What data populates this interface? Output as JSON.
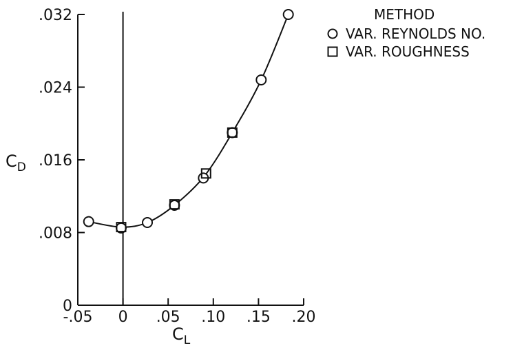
{
  "chart_data": {
    "type": "scatter",
    "xlabel": "C_L",
    "ylabel": "C_D",
    "xlim": [
      -0.05,
      0.2
    ],
    "ylim": [
      0,
      0.032
    ],
    "x_ticks": [
      -0.05,
      0,
      0.05,
      0.1,
      0.15,
      0.2
    ],
    "x_tick_labels": [
      "-.05",
      "0",
      ".05",
      ".10",
      ".15",
      ".20"
    ],
    "y_ticks": [
      0,
      0.008,
      0.016,
      0.024,
      0.032
    ],
    "y_tick_labels": [
      "0",
      ".008",
      ".016",
      ".024",
      ".032"
    ],
    "grid": false,
    "legend": {
      "title": "METHOD",
      "placement": "top-right",
      "entries": [
        "VAR. REYNOLDS NO.",
        "VAR. ROUGHNESS"
      ]
    },
    "series": [
      {
        "name": "VAR. REYNOLDS NO.",
        "marker": "circle",
        "points": [
          [
            -0.038,
            0.0092
          ],
          [
            -0.002,
            0.0085
          ],
          [
            0.027,
            0.0091
          ],
          [
            0.057,
            0.011
          ],
          [
            0.089,
            0.014
          ],
          [
            0.121,
            0.019
          ],
          [
            0.153,
            0.0248
          ],
          [
            0.183,
            0.032
          ]
        ]
      },
      {
        "name": "VAR. ROUGHNESS",
        "marker": "square",
        "points": [
          [
            -0.002,
            0.0086
          ],
          [
            0.057,
            0.0111
          ],
          [
            0.092,
            0.0145
          ],
          [
            0.121,
            0.019
          ]
        ]
      }
    ],
    "fit_curve": [
      [
        -0.038,
        0.0092
      ],
      [
        -0.002,
        0.0086
      ],
      [
        0.027,
        0.0091
      ],
      [
        0.057,
        0.011
      ],
      [
        0.09,
        0.0142
      ],
      [
        0.121,
        0.019
      ],
      [
        0.153,
        0.0248
      ],
      [
        0.183,
        0.032
      ]
    ],
    "vertical_line_x": 0
  }
}
